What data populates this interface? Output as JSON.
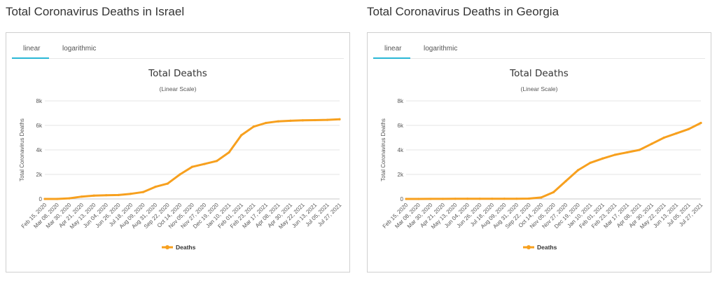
{
  "panels": [
    {
      "heading": "Total Coronavirus Deaths in Israel",
      "tabs": [
        "linear",
        "logarithmic"
      ],
      "active_tab": "linear"
    },
    {
      "heading": "Total Coronavirus Deaths in Georgia",
      "tabs": [
        "linear",
        "logarithmic"
      ],
      "active_tab": "linear"
    }
  ],
  "colors": {
    "series": "#f7a01e",
    "tab_accent": "#2ab7d6",
    "grid": "#e6e6e6"
  },
  "chart_data": [
    {
      "type": "line",
      "title": "Total Deaths",
      "subtitle": "(Linear Scale)",
      "ylabel": "Total Coronavirus Deaths",
      "xlabel": "",
      "legend": "Deaths",
      "legend_position": "bottom-center",
      "ylim": [
        0,
        8000
      ],
      "y_ticks": [
        0,
        2000,
        4000,
        6000,
        8000
      ],
      "y_tick_labels": [
        "0",
        "2k",
        "4k",
        "6k",
        "8k"
      ],
      "categories": [
        "Feb 15, 2020",
        "Mar 08, 2020",
        "Mar 30, 2020",
        "Apr 21, 2020",
        "May 13, 2020",
        "Jun 04, 2020",
        "Jun 26, 2020",
        "Jul 18, 2020",
        "Aug 09, 2020",
        "Aug 31, 2020",
        "Sep 22, 2020",
        "Oct 14, 2020",
        "Nov 05, 2020",
        "Nov 27, 2020",
        "Dec 19, 2020",
        "Jan 10, 2021",
        "Feb 01, 2021",
        "Feb 23, 2021",
        "Mar 17, 2021",
        "Apr 08, 2021",
        "Apr 30, 2021",
        "May 22, 2021",
        "Jun 13, 2021",
        "Jul 05, 2021",
        "Jul 27, 2021"
      ],
      "series": [
        {
          "name": "Deaths",
          "values": [
            0,
            2,
            50,
            190,
            270,
            305,
            320,
            420,
            560,
            990,
            1250,
            2000,
            2620,
            2850,
            3100,
            3800,
            5200,
            5900,
            6200,
            6330,
            6380,
            6410,
            6430,
            6450,
            6500
          ]
        }
      ]
    },
    {
      "type": "line",
      "title": "Total Deaths",
      "subtitle": "(Linear Scale)",
      "ylabel": "Total Coronavirus Deaths",
      "xlabel": "",
      "legend": "Deaths",
      "legend_position": "bottom-center",
      "ylim": [
        0,
        8000
      ],
      "y_ticks": [
        0,
        2000,
        4000,
        6000,
        8000
      ],
      "y_tick_labels": [
        "0",
        "2k",
        "4k",
        "6k",
        "8k"
      ],
      "categories": [
        "Feb 15, 2020",
        "Mar 08, 2020",
        "Mar 30, 2020",
        "Apr 21, 2020",
        "May 13, 2020",
        "Jun 04, 2020",
        "Jun 26, 2020",
        "Jul 18, 2020",
        "Aug 09, 2020",
        "Aug 31, 2020",
        "Sep 22, 2020",
        "Oct 14, 2020",
        "Nov 05, 2020",
        "Nov 27, 2020",
        "Dec 19, 2020",
        "Jan 10, 2021",
        "Feb 01, 2021",
        "Feb 23, 2021",
        "Mar 17, 2021",
        "Apr 08, 2021",
        "Apr 30, 2021",
        "May 22, 2021",
        "Jun 13, 2021",
        "Jul 05, 2021",
        "Jul 27, 2021"
      ],
      "series": [
        {
          "name": "Deaths",
          "values": [
            0,
            0,
            3,
            4,
            12,
            14,
            15,
            17,
            19,
            19,
            30,
            120,
            550,
            1450,
            2350,
            2950,
            3300,
            3600,
            3800,
            4000,
            4500,
            5000,
            5350,
            5700,
            6200
          ]
        }
      ]
    }
  ]
}
